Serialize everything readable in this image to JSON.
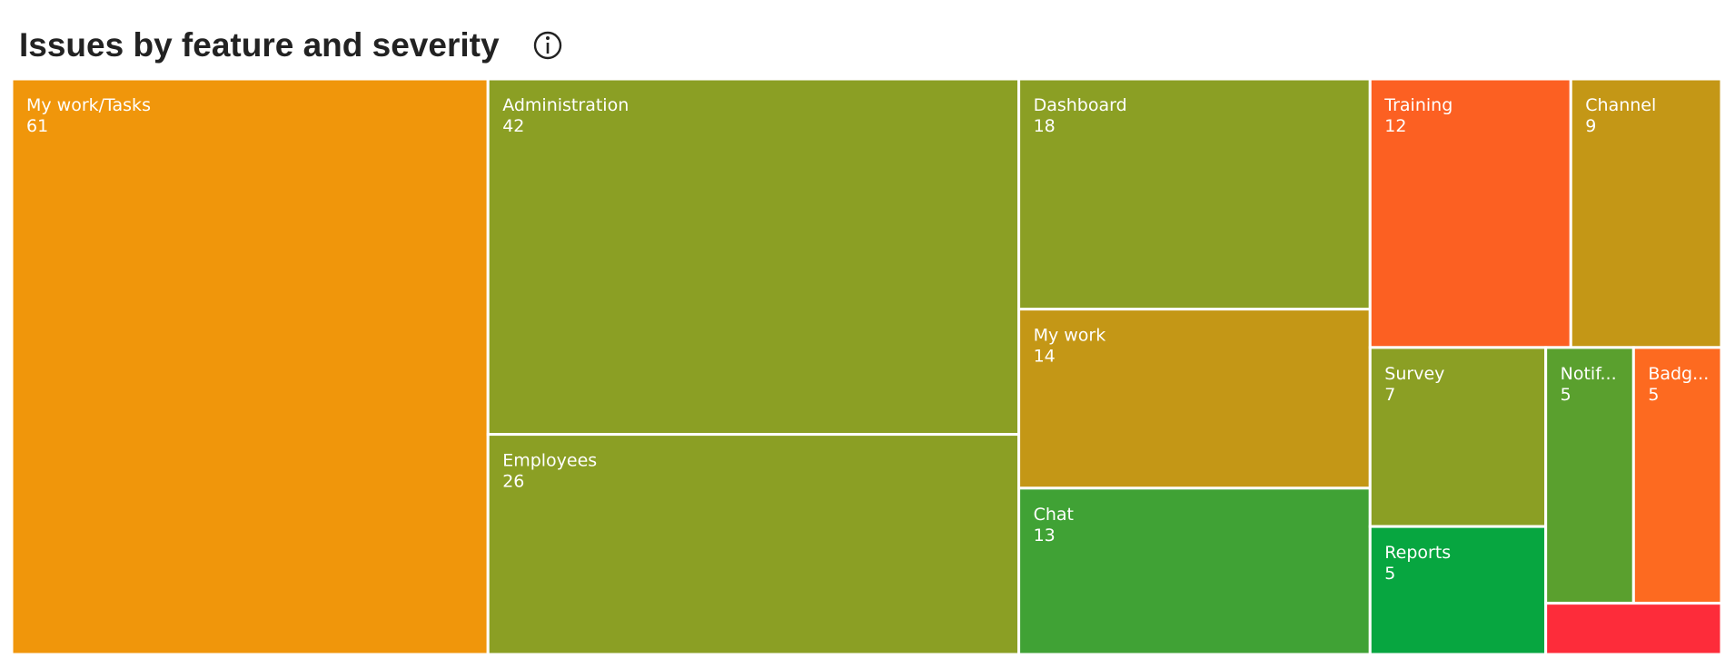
{
  "chart_data": {
    "type": "treemap",
    "title": "Issues by feature and severity",
    "categories": [
      "My work/Tasks",
      "Administration",
      "Employees",
      "Dashboard",
      "My work",
      "Chat",
      "Training",
      "Channel",
      "Survey",
      "Reports",
      "Notif...",
      "Badg...",
      null
    ],
    "values": [
      61,
      42,
      26,
      18,
      14,
      13,
      12,
      9,
      7,
      5,
      5,
      5,
      2
    ],
    "colors": [
      "#f0960b",
      "#8b9f24",
      "#8b9f24",
      "#8b9f24",
      "#c49716",
      "#40a235",
      "#fc6022",
      "#c49716",
      "#8b9f24",
      "#07a640",
      "#5aa02e",
      "#fd6a20",
      "#fd2c3a"
    ]
  }
}
